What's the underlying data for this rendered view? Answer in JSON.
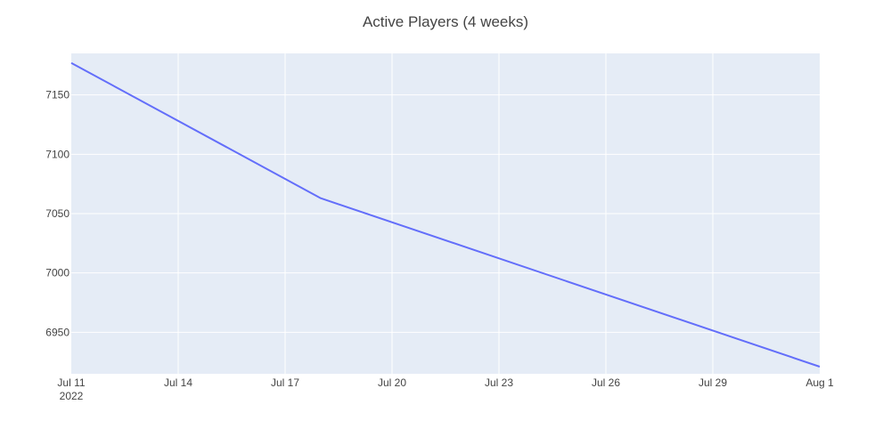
{
  "chart_data": {
    "type": "line",
    "title": "Active Players (4 weeks)",
    "xlabel": "",
    "ylabel": "",
    "x_type": "date",
    "x_range": [
      "2022-07-11",
      "2022-08-01"
    ],
    "ylim": [
      6915,
      7185
    ],
    "grid": true,
    "legend": "none",
    "x_ticks": [
      {
        "value": "2022-07-11",
        "label": "Jul 11",
        "sublabel": "2022"
      },
      {
        "value": "2022-07-14",
        "label": "Jul 14"
      },
      {
        "value": "2022-07-17",
        "label": "Jul 17"
      },
      {
        "value": "2022-07-20",
        "label": "Jul 20"
      },
      {
        "value": "2022-07-23",
        "label": "Jul 23"
      },
      {
        "value": "2022-07-26",
        "label": "Jul 26"
      },
      {
        "value": "2022-07-29",
        "label": "Jul 29"
      },
      {
        "value": "2022-08-01",
        "label": "Aug 1"
      }
    ],
    "y_ticks": [
      6950,
      7000,
      7050,
      7100,
      7150
    ],
    "series": [
      {
        "color": "#636efa",
        "x": [
          "2022-07-11",
          "2022-07-18",
          "2022-08-01"
        ],
        "y": [
          7177,
          7063,
          6921
        ]
      }
    ]
  },
  "colors": {
    "plot_background": "#e5ecf6",
    "grid": "#ffffff",
    "line": "#636efa",
    "text": "#444444"
  }
}
